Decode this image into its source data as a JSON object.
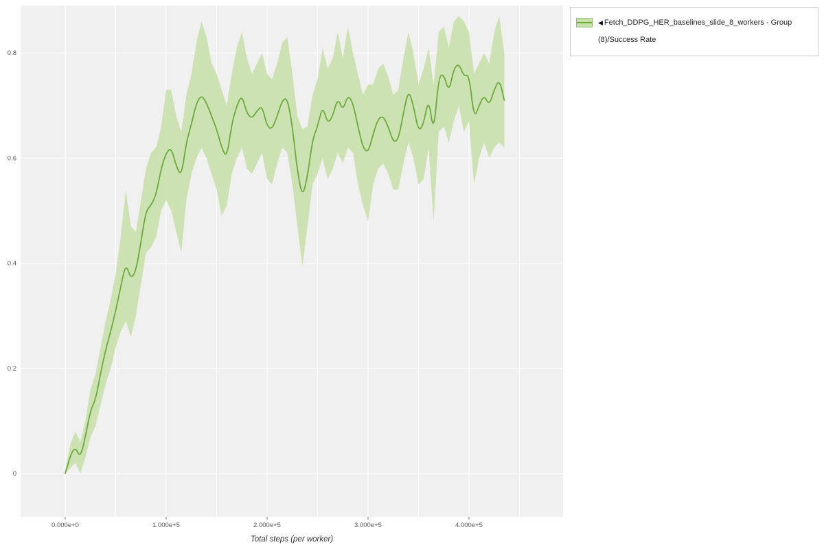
{
  "legend": {
    "collapse_icon": "◀",
    "series_label": "Fetch_DDPG_HER_baselines_slide_8_workers - Group (8)/Success Rate"
  },
  "colors": {
    "plot_bg": "#f0f0f0",
    "grid": "#ffffff",
    "tick_text": "#555555",
    "axis_tick": "#777777",
    "line": "#6aaa3a",
    "band": "#c9e0ab",
    "legend_border": "#c8c8c8"
  },
  "chart_data": {
    "type": "line",
    "title": "",
    "xlabel": "Total steps (per worker)",
    "ylabel": "",
    "xlim": [
      -44000,
      493000
    ],
    "ylim": [
      -0.082,
      0.89
    ],
    "grid": true,
    "legend_position": "outside-top-right",
    "x_ticks": [
      {
        "value": 0,
        "label": "0.000e+0"
      },
      {
        "value": 100000,
        "label": "1.000e+5"
      },
      {
        "value": 200000,
        "label": "2.000e+5"
      },
      {
        "value": 300000,
        "label": "3.000e+5"
      },
      {
        "value": 400000,
        "label": "4.000e+5"
      }
    ],
    "y_ticks": [
      {
        "value": 0,
        "label": "0"
      },
      {
        "value": 0.2,
        "label": "0.2"
      },
      {
        "value": 0.4,
        "label": "0.4"
      },
      {
        "value": 0.6,
        "label": "0.6"
      },
      {
        "value": 0.8,
        "label": "0.8"
      }
    ],
    "series": [
      {
        "name": "Fetch_DDPG_HER_baselines_slide_8_workers - Group (8)/Success Rate",
        "color": "#6aaa3a",
        "band_color": "#c9e0ab",
        "x": [
          0,
          5000,
          10000,
          15000,
          20000,
          25000,
          30000,
          35000,
          40000,
          45000,
          50000,
          55000,
          60000,
          65000,
          70000,
          75000,
          80000,
          85000,
          90000,
          95000,
          100000,
          105000,
          110000,
          115000,
          120000,
          125000,
          130000,
          135000,
          140000,
          145000,
          150000,
          155000,
          160000,
          165000,
          170000,
          175000,
          180000,
          185000,
          190000,
          195000,
          200000,
          205000,
          210000,
          215000,
          220000,
          225000,
          230000,
          235000,
          240000,
          245000,
          250000,
          255000,
          260000,
          265000,
          270000,
          275000,
          280000,
          285000,
          290000,
          295000,
          300000,
          305000,
          310000,
          315000,
          320000,
          325000,
          330000,
          335000,
          340000,
          345000,
          350000,
          355000,
          360000,
          365000,
          370000,
          375000,
          380000,
          385000,
          390000,
          395000,
          400000,
          405000,
          410000,
          415000,
          420000,
          425000,
          430000,
          435000
        ],
        "mean": [
          0.0,
          0.035,
          0.05,
          0.03,
          0.07,
          0.12,
          0.14,
          0.19,
          0.235,
          0.27,
          0.31,
          0.355,
          0.4,
          0.37,
          0.385,
          0.44,
          0.5,
          0.51,
          0.53,
          0.58,
          0.61,
          0.62,
          0.585,
          0.565,
          0.63,
          0.665,
          0.705,
          0.72,
          0.705,
          0.68,
          0.655,
          0.62,
          0.6,
          0.665,
          0.7,
          0.72,
          0.685,
          0.675,
          0.69,
          0.7,
          0.66,
          0.655,
          0.68,
          0.71,
          0.715,
          0.66,
          0.575,
          0.525,
          0.565,
          0.635,
          0.66,
          0.7,
          0.665,
          0.68,
          0.715,
          0.69,
          0.72,
          0.705,
          0.66,
          0.62,
          0.61,
          0.645,
          0.675,
          0.68,
          0.66,
          0.63,
          0.635,
          0.685,
          0.73,
          0.7,
          0.65,
          0.665,
          0.715,
          0.645,
          0.755,
          0.76,
          0.725,
          0.77,
          0.78,
          0.755,
          0.76,
          0.675,
          0.7,
          0.72,
          0.7,
          0.73,
          0.75,
          0.71
        ],
        "lower": [
          0.0,
          0.01,
          0.02,
          0.0,
          0.03,
          0.07,
          0.09,
          0.13,
          0.17,
          0.2,
          0.24,
          0.27,
          0.29,
          0.26,
          0.3,
          0.36,
          0.42,
          0.43,
          0.45,
          0.5,
          0.52,
          0.5,
          0.46,
          0.42,
          0.52,
          0.57,
          0.6,
          0.62,
          0.6,
          0.57,
          0.54,
          0.49,
          0.51,
          0.57,
          0.6,
          0.62,
          0.58,
          0.57,
          0.59,
          0.61,
          0.56,
          0.55,
          0.59,
          0.62,
          0.61,
          0.55,
          0.47,
          0.395,
          0.47,
          0.55,
          0.57,
          0.6,
          0.56,
          0.58,
          0.61,
          0.59,
          0.62,
          0.61,
          0.55,
          0.51,
          0.48,
          0.55,
          0.58,
          0.59,
          0.57,
          0.54,
          0.54,
          0.59,
          0.63,
          0.6,
          0.55,
          0.56,
          0.62,
          0.48,
          0.65,
          0.66,
          0.63,
          0.67,
          0.7,
          0.65,
          0.67,
          0.55,
          0.6,
          0.63,
          0.6,
          0.62,
          0.63,
          0.62
        ],
        "upper": [
          0.005,
          0.055,
          0.08,
          0.06,
          0.1,
          0.16,
          0.19,
          0.24,
          0.29,
          0.33,
          0.38,
          0.45,
          0.54,
          0.47,
          0.46,
          0.52,
          0.58,
          0.61,
          0.62,
          0.66,
          0.73,
          0.73,
          0.68,
          0.65,
          0.72,
          0.76,
          0.82,
          0.86,
          0.83,
          0.78,
          0.76,
          0.73,
          0.7,
          0.76,
          0.81,
          0.84,
          0.79,
          0.76,
          0.78,
          0.8,
          0.76,
          0.75,
          0.78,
          0.82,
          0.83,
          0.76,
          0.68,
          0.655,
          0.66,
          0.72,
          0.75,
          0.81,
          0.77,
          0.79,
          0.84,
          0.79,
          0.85,
          0.8,
          0.76,
          0.72,
          0.74,
          0.74,
          0.77,
          0.78,
          0.755,
          0.72,
          0.73,
          0.79,
          0.84,
          0.8,
          0.74,
          0.77,
          0.81,
          0.74,
          0.84,
          0.85,
          0.81,
          0.86,
          0.87,
          0.86,
          0.84,
          0.76,
          0.78,
          0.8,
          0.78,
          0.84,
          0.87,
          0.8
        ]
      }
    ]
  }
}
